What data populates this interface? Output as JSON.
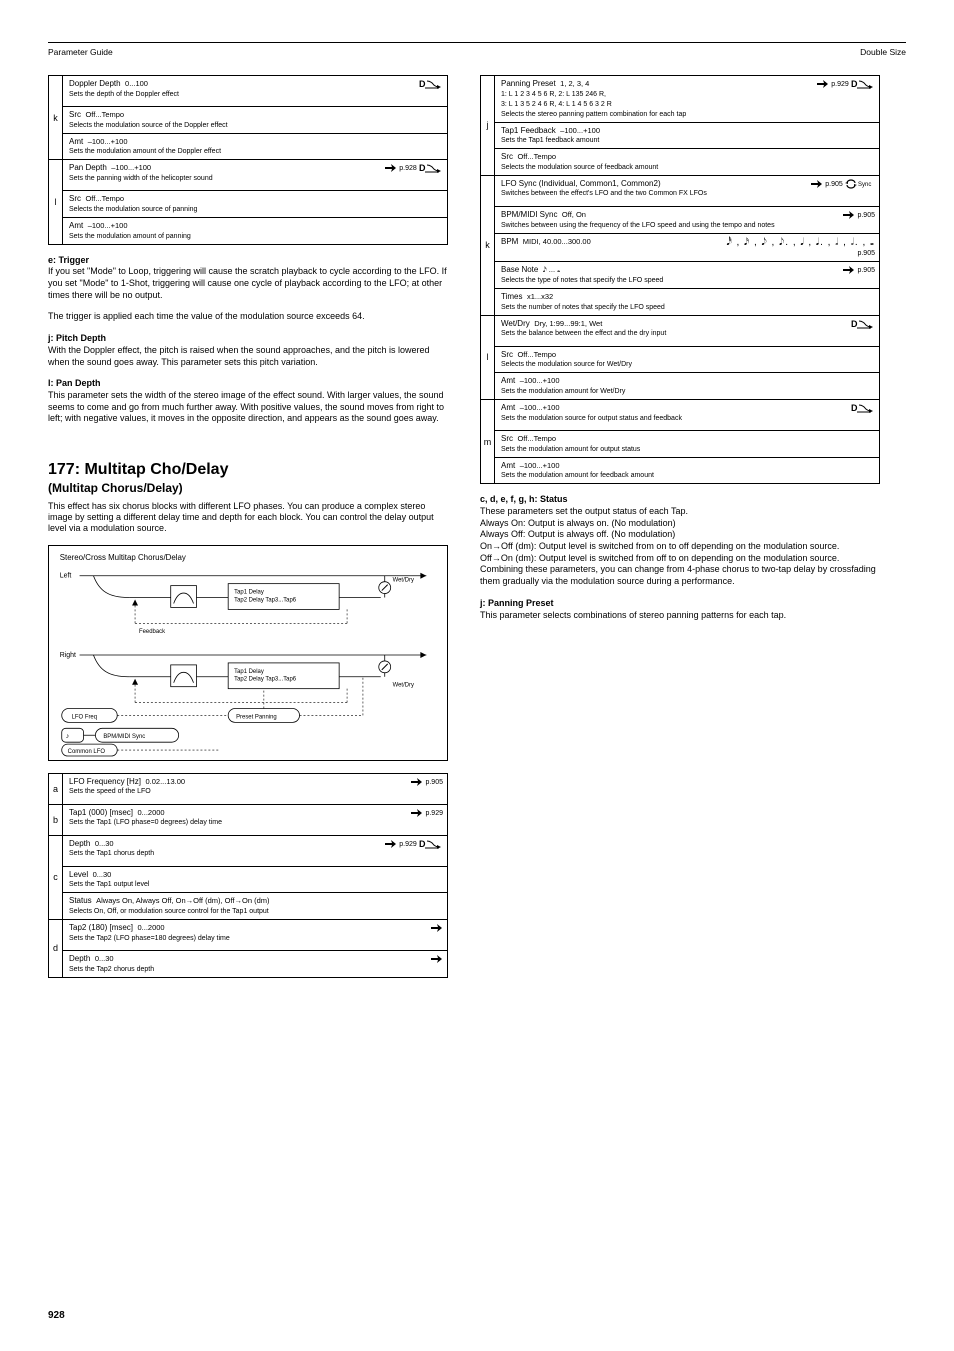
{
  "header_left": "Parameter Guide",
  "header_right": "Double Size",
  "page_number": "928",
  "left_table": {
    "rows": [
      {
        "letter": "k",
        "name": "Doppler Depth",
        "range": "0...100",
        "desc": "Sets the depth of the Doppler effect",
        "dmod": true,
        "subs": [
          {
            "name": "Src",
            "range": "Off...Tempo",
            "desc": "Selects the modulation source of the Doppler effect"
          },
          {
            "name": "Amt",
            "range": "–100...+100",
            "desc": "Sets the modulation amount of the Doppler effect"
          }
        ]
      },
      {
        "letter": "l",
        "name": "Pan Depth",
        "range": "–100...+100",
        "desc": "Sets the panning width of the helicopter sound",
        "dmod": true,
        "hand": true,
        "pline": "p.928",
        "subs": [
          {
            "name": "Src",
            "range": "Off...Tempo",
            "desc": "Selects the modulation source of panning"
          },
          {
            "name": "Amt",
            "range": "–100...+100",
            "desc": "Sets the modulation amount of panning"
          }
        ]
      }
    ]
  },
  "left_notes": [
    {
      "label": "e: Trigger",
      "body": "If you set \"Mode\" to Loop, triggering will cause the scratch playback to cycle according to the LFO. If you set \"Mode\" to 1-Shot, triggering will cause one cycle of playback according to the LFO; at other times there will be no output."
    },
    {
      "label": "",
      "body": "The trigger is applied each time the value of the modulation source exceeds 64."
    },
    {
      "label": "j: Pitch Depth",
      "body": "With the Doppler effect, the pitch is raised when the sound approaches, and the pitch is lowered when the sound goes away. This parameter sets this pitch variation."
    },
    {
      "label": "l: Pan Depth",
      "body": "This parameter sets the width of the stereo image of the effect sound. With larger values, the sound seems to come and go from much further away. With positive values, the sound moves from right to left; with negative values, it moves in the opposite direction, and appears as the sound goes away."
    }
  ],
  "fx": {
    "number": "177: Multitap Cho/Delay",
    "name": "(Multitap Chorus/Delay)",
    "desc": "This effect has six chorus blocks with different LFO phases. You can produce a complex stereo image by setting a different delay time and depth for each block. You can control the delay output level via a modulation source.",
    "diagram_title": "Stereo/Cross Multitap Chorus/Delay"
  },
  "fx_table": {
    "rows": [
      {
        "letter": "a",
        "name": "LFO Frequency [Hz]",
        "range": "0.02...13.00",
        "desc": "Sets the speed of the LFO",
        "hand": true,
        "pline": "p.905"
      },
      {
        "letter": "b",
        "name": "Tap1 (000) [msec]",
        "range": "0...2000",
        "desc": "Sets the Tap1 (LFO phase=0 degrees) delay time",
        "hand": true,
        "pline": "p.929"
      },
      {
        "letter": "c",
        "name": "Depth",
        "range": "0...30",
        "desc": "Sets the Tap1 chorus depth",
        "dmod": true,
        "hand": true,
        "pline": "p.929",
        "subs": [
          {
            "name": "Level",
            "range": "0...30",
            "desc": "Sets the Tap1 output level"
          },
          {
            "name": "Status",
            "range": "Always On, Always Off, On→Off (dm), Off→On (dm)",
            "desc": "Selects On, Off, or modulation source control for the Tap1 output"
          }
        ]
      },
      {
        "letter": "d",
        "name": "Tap2 (180) [msec]",
        "range": "0...2000",
        "desc": "Sets the Tap2 (LFO phase=180 degrees) delay time",
        "hand": true,
        "subs": [
          {
            "name": "Depth",
            "range": "0...30",
            "desc": "Sets the Tap2 chorus depth",
            "hand": true
          }
        ]
      }
    ]
  },
  "right_table": {
    "rows": [
      {
        "letter": "j",
        "name": "Panning Preset",
        "range": "1, 2, 3, 4",
        "desc": "1: L 1 2 3 4 5 6 R, 2: L 135 246 R,\n3: L 1 3 5 2 4 6 R, 4: L 1 4 5 6 3 2 R\nSelects the stereo panning pattern combination for each tap",
        "dmod": true,
        "hand": true,
        "pline": "p.929",
        "subs": [
          {
            "name": "Tap1 Feedback",
            "range": "–100...+100",
            "desc": "Sets the Tap1 feedback amount"
          },
          {
            "name": "Src",
            "range": "Off...Tempo",
            "desc": "Selects the modulation source of feedback amount"
          }
        ]
      },
      {
        "letter": "k",
        "name": "LFO Sync (Individual, Common1, Common2)",
        "range": "",
        "desc": "Switches between the effect's LFO and the two Common FX LFOs",
        "hand": true,
        "sync": true,
        "pline": "p.905",
        "subs": [
          {
            "name": "BPM/MIDI Sync",
            "range": "Off, On",
            "desc": "Switches between using the frequency of the LFO speed and using the tempo and notes",
            "hand": true,
            "pline": "p.905"
          },
          {
            "name": "BPM",
            "range": "MIDI, 40.00...300.00",
            "desc": "",
            "notes": true,
            "pline": "p.905"
          },
          {
            "name": "Base Note",
            "range": "𝅘𝅥𝅯 ... 𝅝",
            "desc": "Selects the type of notes that specify the LFO speed",
            "hand": true,
            "pline": "p.905"
          },
          {
            "name": "Times",
            "range": "x1...x32",
            "desc": "Sets the number of notes that specify the LFO speed"
          }
        ]
      },
      {
        "letter": "l",
        "name": "Wet/Dry",
        "range": "Dry, 1:99...99:1, Wet",
        "desc": "Sets the balance between the effect and the dry input",
        "dmod": true,
        "subs": [
          {
            "name": "Src",
            "range": "Off...Tempo",
            "desc": "Selects the modulation source for Wet/Dry"
          },
          {
            "name": "Amt",
            "range": "–100...+100",
            "desc": "Sets the modulation amount for Wet/Dry"
          }
        ]
      },
      {
        "letter": "m",
        "name": "Amt",
        "range": "–100...+100",
        "desc": "Sets the modulation source for output status and feedback",
        "dmod": true,
        "subs": [
          {
            "name": "Src",
            "range": "Off...Tempo",
            "desc": "Sets the modulation amount for output status"
          },
          {
            "name": "Amt",
            "range": "–100...+100",
            "desc": "Sets the modulation amount for feedback amount"
          }
        ]
      }
    ]
  },
  "right_notes": [
    {
      "label": "c, d, e, f, g, h: Status",
      "body": "These parameters set the output status of each Tap.\nAlways On: Output is always on. (No modulation)\nAlways Off: Output is always off. (No modulation)\nOn→Off (dm): Output level is switched from on to off depending on the modulation source.\nOff→On (dm): Output level is switched from off to on depending on the modulation source.\nCombining these parameters, you can change from 4-phase chorus to two-tap delay by crossfading them gradually via the modulation source during a performance."
    },
    {
      "label": "j: Panning Preset",
      "body": "This parameter selects combinations of stereo panning patterns for each tap."
    }
  ]
}
